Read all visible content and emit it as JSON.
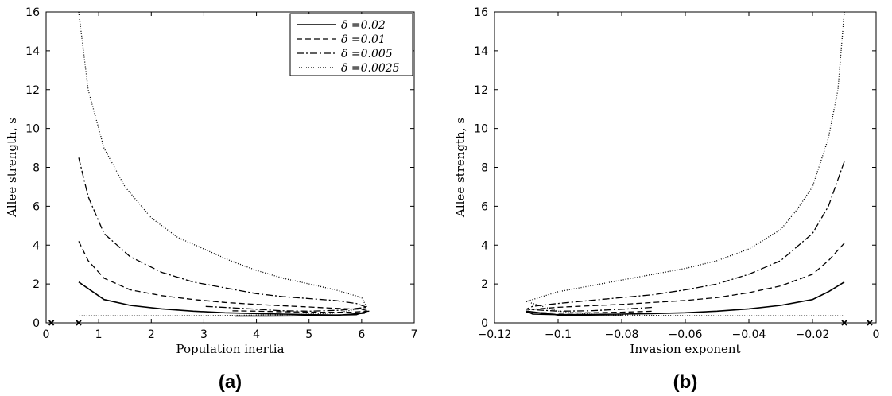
{
  "chart_data": [
    {
      "type": "line",
      "panel_label": "(a)",
      "xlabel": "Population inertia",
      "ylabel": "Allee strength, s",
      "xlim": [
        0,
        7
      ],
      "ylim": [
        0,
        16
      ],
      "xticks": [
        "0",
        "1",
        "2",
        "3",
        "4",
        "5",
        "6",
        "7"
      ],
      "yticks": [
        "0",
        "2",
        "4",
        "6",
        "8",
        "10",
        "12",
        "14",
        "16"
      ],
      "legend": {
        "position": "top-right",
        "entries": [
          "δ =0.02",
          "δ =0.01",
          "δ =0.005",
          "δ =0.0025"
        ]
      },
      "series": [
        {
          "name": "δ =0.02",
          "style": "solid",
          "x": [
            0.62,
            1.1,
            1.6,
            2.2,
            2.8,
            3.4,
            4.0,
            4.5,
            5.0,
            5.5,
            5.9,
            6.1,
            6.05,
            5.5,
            4.8,
            4.2,
            3.6
          ],
          "y": [
            2.1,
            1.2,
            0.9,
            0.72,
            0.6,
            0.52,
            0.48,
            0.45,
            0.42,
            0.4,
            0.42,
            0.6,
            0.5,
            0.38,
            0.36,
            0.35,
            0.35
          ]
        },
        {
          "name": "δ =0.01",
          "style": "dashed",
          "x": [
            0.62,
            0.8,
            1.1,
            1.6,
            2.2,
            2.8,
            3.4,
            4.0,
            4.5,
            5.0,
            5.5,
            6.0,
            6.15,
            5.8,
            5.2,
            4.6,
            4.0,
            3.5
          ],
          "y": [
            4.2,
            3.2,
            2.3,
            1.7,
            1.4,
            1.2,
            1.05,
            0.95,
            0.88,
            0.82,
            0.75,
            0.7,
            0.6,
            0.55,
            0.55,
            0.57,
            0.6,
            0.62
          ]
        },
        {
          "name": "δ =0.005",
          "style": "dashdot",
          "x": [
            0.62,
            0.8,
            1.1,
            1.6,
            2.2,
            2.8,
            3.4,
            4.0,
            4.5,
            5.0,
            5.5,
            5.9,
            6.1,
            5.6,
            5.0,
            4.5,
            4.0,
            3.5,
            3.0
          ],
          "y": [
            8.5,
            6.5,
            4.6,
            3.4,
            2.6,
            2.1,
            1.8,
            1.5,
            1.35,
            1.25,
            1.15,
            1.0,
            0.8,
            0.65,
            0.6,
            0.62,
            0.7,
            0.78,
            0.85
          ]
        },
        {
          "name": "δ =0.0025",
          "style": "dotted",
          "x": [
            0.62,
            0.8,
            1.1,
            1.5,
            2.0,
            2.5,
            3.0,
            3.5,
            4.0,
            4.5,
            5.0,
            5.5,
            6.0,
            6.1,
            5.5,
            5.0,
            4.5,
            4.0,
            3.5,
            3.0,
            2.0,
            1.0,
            0.62
          ],
          "y": [
            16,
            12,
            9,
            7,
            5.4,
            4.4,
            3.8,
            3.2,
            2.7,
            2.3,
            2.0,
            1.7,
            1.3,
            0.8,
            0.5,
            0.45,
            0.42,
            0.4,
            0.38,
            0.37,
            0.36,
            0.36,
            0.36
          ]
        }
      ],
      "markers": {
        "x": [
          0.1,
          0.62
        ],
        "y": [
          0,
          0
        ]
      }
    },
    {
      "type": "line",
      "panel_label": "(b)",
      "xlabel": "Invasion exponent",
      "ylabel": "Allee strength, s",
      "xlim": [
        -0.12,
        0
      ],
      "ylim": [
        0,
        16
      ],
      "xticks": [
        "−0.12",
        "−0.1",
        "−0.08",
        "−0.06",
        "−0.04",
        "−0.02",
        "0"
      ],
      "yticks": [
        "0",
        "2",
        "4",
        "6",
        "8",
        "10",
        "12",
        "14",
        "16"
      ],
      "series": [
        {
          "name": "δ =0.02",
          "style": "solid",
          "x": [
            -0.01,
            -0.015,
            -0.02,
            -0.03,
            -0.04,
            -0.05,
            -0.06,
            -0.07,
            -0.08,
            -0.09,
            -0.1,
            -0.108,
            -0.11,
            -0.1,
            -0.09,
            -0.08
          ],
          "y": [
            2.1,
            1.6,
            1.2,
            0.9,
            0.72,
            0.6,
            0.52,
            0.48,
            0.45,
            0.43,
            0.42,
            0.45,
            0.6,
            0.4,
            0.37,
            0.36
          ]
        },
        {
          "name": "δ =0.01",
          "style": "dashed",
          "x": [
            -0.01,
            -0.015,
            -0.02,
            -0.03,
            -0.04,
            -0.05,
            -0.06,
            -0.07,
            -0.08,
            -0.09,
            -0.1,
            -0.108,
            -0.11,
            -0.1,
            -0.09,
            -0.08,
            -0.07
          ],
          "y": [
            4.1,
            3.2,
            2.5,
            1.9,
            1.55,
            1.3,
            1.15,
            1.05,
            0.95,
            0.88,
            0.8,
            0.7,
            0.55,
            0.5,
            0.52,
            0.55,
            0.6
          ]
        },
        {
          "name": "δ =0.005",
          "style": "dashdot",
          "x": [
            -0.01,
            -0.015,
            -0.02,
            -0.03,
            -0.04,
            -0.05,
            -0.06,
            -0.07,
            -0.08,
            -0.09,
            -0.1,
            -0.108,
            -0.11,
            -0.1,
            -0.09,
            -0.08,
            -0.07
          ],
          "y": [
            8.3,
            6.0,
            4.6,
            3.2,
            2.5,
            2.0,
            1.7,
            1.45,
            1.3,
            1.15,
            1.0,
            0.85,
            0.7,
            0.6,
            0.62,
            0.7,
            0.8
          ]
        },
        {
          "name": "δ =0.0025",
          "style": "dotted",
          "x": [
            -0.01,
            -0.012,
            -0.015,
            -0.02,
            -0.025,
            -0.03,
            -0.04,
            -0.05,
            -0.06,
            -0.07,
            -0.08,
            -0.09,
            -0.1,
            -0.11,
            -0.1,
            -0.09,
            -0.08,
            -0.06,
            -0.04,
            -0.02,
            -0.01
          ],
          "y": [
            16,
            12,
            9.5,
            7.0,
            5.8,
            4.8,
            3.8,
            3.2,
            2.8,
            2.5,
            2.2,
            1.9,
            1.6,
            1.1,
            0.6,
            0.45,
            0.4,
            0.37,
            0.36,
            0.36,
            0.36
          ]
        }
      ],
      "markers": {
        "x": [
          -0.01,
          -0.002
        ],
        "y": [
          0,
          0
        ]
      }
    }
  ]
}
